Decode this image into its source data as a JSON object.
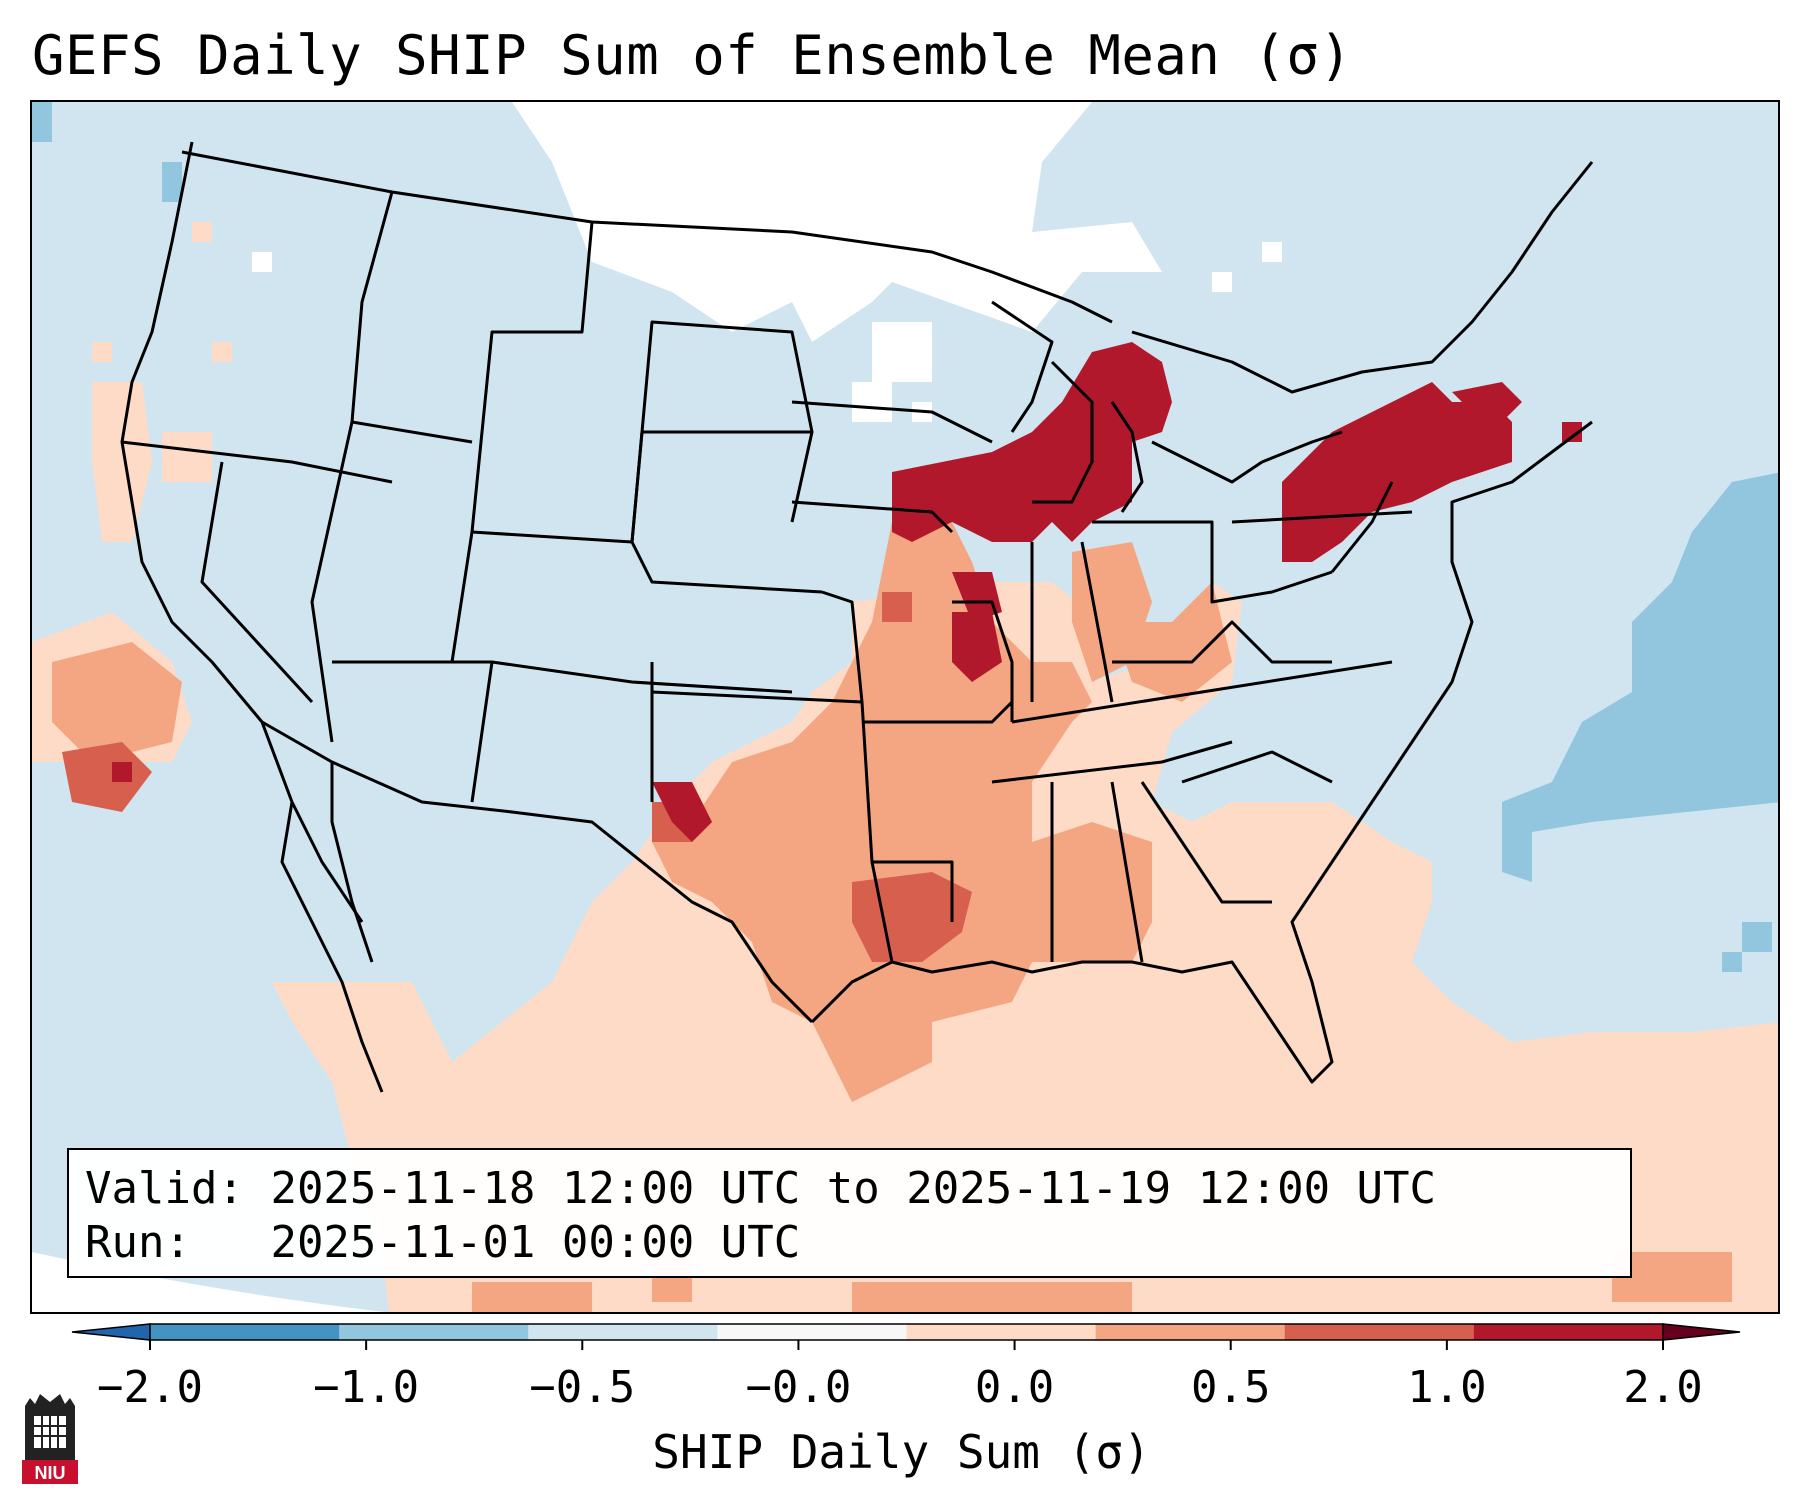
{
  "title": "GEFS Daily SHIP Sum of Ensemble Mean (σ)",
  "info": {
    "valid_label": "Valid:",
    "valid_value": "2025-11-18 12:00 UTC to 2025-11-19 12:00 UTC",
    "run_label": "Run:",
    "run_value": "2025-11-01 00:00 UTC"
  },
  "colorbar": {
    "label": "SHIP Daily Sum (σ)",
    "ticks": [
      "−2.0",
      "−1.0",
      "−0.5",
      "−0.0",
      "0.0",
      "0.5",
      "1.0",
      "2.0"
    ],
    "colors": [
      "#4393c3",
      "#92c5de",
      "#d1e5f0",
      "#f7f7f7",
      "#fddbc7",
      "#f4a582",
      "#d6604d",
      "#b2182b"
    ],
    "under_color": "#2166ac",
    "over_color": "#67001f"
  },
  "legend_colors": {
    "background": "#d1e5f0",
    "near_zero": "#ffffff",
    "slightly_positive": "#fddbc7",
    "positive": "#f4a582",
    "strong_positive": "#d6604d",
    "very_strong": "#b2182b",
    "negative": "#92c5de"
  },
  "logo": {
    "text": "NIU",
    "icon": "niu-huskie-logo-icon"
  }
}
